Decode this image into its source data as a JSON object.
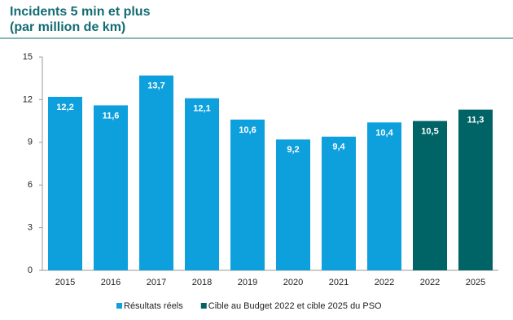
{
  "chart_data": {
    "type": "bar",
    "title": "Incidents 5 min et plus",
    "subtitle": "(par million de km)",
    "categories": [
      "2015",
      "2016",
      "2017",
      "2018",
      "2019",
      "2020",
      "2021",
      "2022",
      "2022",
      "2025"
    ],
    "series": [
      {
        "name": "Résultats réels",
        "color": "#0ea0dc",
        "values": [
          12.2,
          11.6,
          13.7,
          12.1,
          10.6,
          9.2,
          9.4,
          10.4,
          null,
          null
        ],
        "value_labels": [
          "12,2",
          "11,6",
          "13,7",
          "12,1",
          "10,6",
          "9,2",
          "9,4",
          "10,4",
          null,
          null
        ]
      },
      {
        "name": "Cible au Budget 2022 et cible 2025 du PSO",
        "color": "#006466",
        "values": [
          null,
          null,
          null,
          null,
          null,
          null,
          null,
          null,
          10.5,
          11.3
        ],
        "value_labels": [
          null,
          null,
          null,
          null,
          null,
          null,
          null,
          null,
          "10,5",
          "11,3"
        ]
      }
    ],
    "ylim": [
      0,
      15
    ],
    "yticks": [
      0,
      3,
      6,
      9,
      12,
      15
    ],
    "grid": false,
    "legend": "bottom"
  }
}
